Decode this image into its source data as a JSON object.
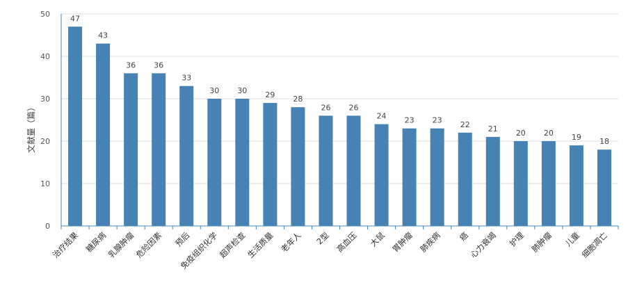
{
  "chart_data": {
    "type": "bar",
    "title": "",
    "xlabel": "",
    "ylabel": "文献量（篇）",
    "ylim": [
      0,
      50
    ],
    "yticks": [
      0,
      10,
      20,
      30,
      40,
      50
    ],
    "grid": true,
    "legend": "none",
    "bar_color": "#4682b4",
    "categories": [
      "治疗结果",
      "糖尿病",
      "乳腺肿瘤",
      "危险因素",
      "预后",
      "免疫组织化学",
      "超声检查",
      "生活质量",
      "老年人",
      "2型",
      "高血压",
      "大鼠",
      "胃肿瘤",
      "肺疾病",
      "癌",
      "心力衰竭",
      "护理",
      "肺肿瘤",
      "儿童",
      "细胞凋亡"
    ],
    "values": [
      47,
      43,
      36,
      36,
      33,
      30,
      30,
      29,
      28,
      26,
      26,
      24,
      23,
      23,
      22,
      21,
      20,
      20,
      19,
      18
    ]
  }
}
